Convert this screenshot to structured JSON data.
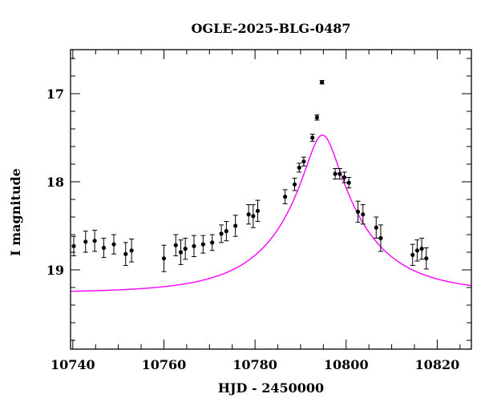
{
  "chart_data": {
    "type": "scatter",
    "title": "OGLE-2025-BLG-0487",
    "xlabel": "HJD - 2450000",
    "ylabel": "I magnitude",
    "xlim": [
      10739.5,
      10827.5
    ],
    "ylim": [
      19.9,
      16.5
    ],
    "y_inverted": true,
    "x_ticks": [
      10740,
      10760,
      10780,
      10800,
      10820
    ],
    "x_tick_labels": [
      "10740",
      "10760",
      "10780",
      "10800",
      "10820"
    ],
    "y_ticks": [
      17,
      18,
      19
    ],
    "y_tick_labels": [
      "17",
      "18",
      "19"
    ],
    "grid": false,
    "series": [
      {
        "type": "errorbar",
        "color": "#000000",
        "points": [
          {
            "x": 10740.2,
            "y": 18.73,
            "err": 0.11
          },
          {
            "x": 10742.8,
            "y": 18.68,
            "err": 0.12
          },
          {
            "x": 10744.8,
            "y": 18.67,
            "err": 0.12
          },
          {
            "x": 10746.8,
            "y": 18.75,
            "err": 0.11
          },
          {
            "x": 10749.0,
            "y": 18.71,
            "err": 0.11
          },
          {
            "x": 10751.6,
            "y": 18.82,
            "err": 0.13
          },
          {
            "x": 10752.9,
            "y": 18.78,
            "err": 0.13
          },
          {
            "x": 10760.0,
            "y": 18.87,
            "err": 0.15
          },
          {
            "x": 10762.6,
            "y": 18.72,
            "err": 0.12
          },
          {
            "x": 10763.7,
            "y": 18.8,
            "err": 0.14
          },
          {
            "x": 10764.7,
            "y": 18.76,
            "err": 0.12
          },
          {
            "x": 10766.6,
            "y": 18.73,
            "err": 0.12
          },
          {
            "x": 10768.6,
            "y": 18.71,
            "err": 0.1
          },
          {
            "x": 10770.6,
            "y": 18.69,
            "err": 0.09
          },
          {
            "x": 10772.6,
            "y": 18.59,
            "err": 0.1
          },
          {
            "x": 10773.7,
            "y": 18.56,
            "err": 0.11
          },
          {
            "x": 10775.7,
            "y": 18.5,
            "err": 0.12
          },
          {
            "x": 10778.6,
            "y": 18.37,
            "err": 0.11
          },
          {
            "x": 10779.6,
            "y": 18.39,
            "err": 0.13
          },
          {
            "x": 10780.6,
            "y": 18.33,
            "err": 0.12
          },
          {
            "x": 10786.6,
            "y": 18.17,
            "err": 0.08
          },
          {
            "x": 10788.7,
            "y": 18.03,
            "err": 0.07
          },
          {
            "x": 10789.7,
            "y": 17.84,
            "err": 0.05
          },
          {
            "x": 10790.7,
            "y": 17.77,
            "err": 0.05
          },
          {
            "x": 10792.6,
            "y": 17.5,
            "err": 0.04
          },
          {
            "x": 10793.6,
            "y": 17.27,
            "err": 0.03
          },
          {
            "x": 10794.7,
            "y": 16.87,
            "err": 0.02
          },
          {
            "x": 10797.6,
            "y": 17.91,
            "err": 0.06
          },
          {
            "x": 10798.6,
            "y": 17.91,
            "err": 0.06
          },
          {
            "x": 10799.6,
            "y": 17.95,
            "err": 0.06
          },
          {
            "x": 10800.6,
            "y": 18.01,
            "err": 0.06
          },
          {
            "x": 10802.6,
            "y": 18.34,
            "err": 0.12
          },
          {
            "x": 10803.7,
            "y": 18.37,
            "err": 0.11
          },
          {
            "x": 10806.6,
            "y": 18.52,
            "err": 0.12
          },
          {
            "x": 10807.6,
            "y": 18.64,
            "err": 0.15
          },
          {
            "x": 10814.6,
            "y": 18.83,
            "err": 0.12
          },
          {
            "x": 10815.6,
            "y": 18.78,
            "err": 0.12
          },
          {
            "x": 10816.6,
            "y": 18.76,
            "err": 0.12
          },
          {
            "x": 10817.6,
            "y": 18.87,
            "err": 0.12
          }
        ]
      },
      {
        "type": "model-curve",
        "color": "#ff00ff",
        "t0": 10794.8,
        "u0": 0.195,
        "tE": 18,
        "I_base": 19.26
      }
    ]
  }
}
